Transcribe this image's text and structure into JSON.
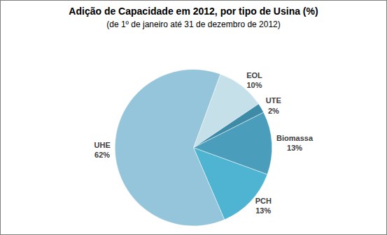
{
  "chart_data": {
    "type": "pie",
    "title": "Adição de Capacidade em 2012, por tipo de Usina (%)",
    "subtitle": "(de 1º de janeiro até 31 de dezembro de 2012)",
    "categories": [
      "EOL",
      "UTE",
      "Biomassa",
      "PCH",
      "UHE"
    ],
    "values": [
      10,
      2,
      13,
      13,
      62
    ],
    "value_labels": [
      "10%",
      "2%",
      "13%",
      "13%",
      "62%"
    ],
    "colors": [
      "#c6e0ea",
      "#3d8ba6",
      "#4a9dbb",
      "#4fb4d2",
      "#95c5da"
    ],
    "data_labels": true
  }
}
